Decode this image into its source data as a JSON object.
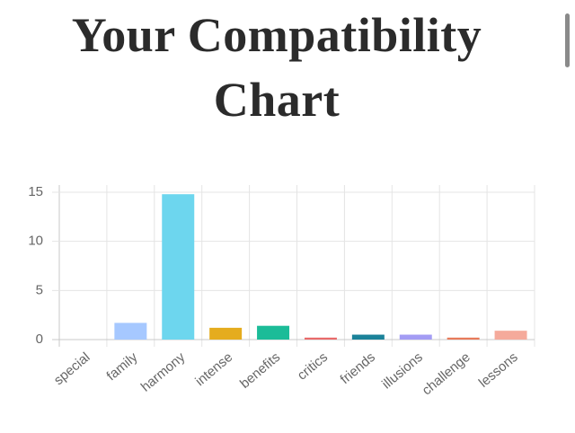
{
  "chart_data": {
    "type": "bar",
    "title_lines": [
      "Your Compatibility",
      "Chart"
    ],
    "categories": [
      "special",
      "family",
      "harmony",
      "intense",
      "benefits",
      "critics",
      "friends",
      "illusions",
      "challenge",
      "lessons"
    ],
    "values": [
      0,
      1.7,
      14.8,
      1.2,
      1.4,
      0.2,
      0.5,
      0.5,
      0.2,
      0.9
    ],
    "colors": [
      "#a6c8ff",
      "#a6c8ff",
      "#6dd6ee",
      "#e5ac1e",
      "#1bbc98",
      "#e96a6a",
      "#1b8299",
      "#a39cf4",
      "#e87a5a",
      "#f5aa9b"
    ],
    "ylim": [
      0,
      15
    ],
    "yticks": [
      0,
      5,
      10,
      15
    ],
    "grid": true
  }
}
